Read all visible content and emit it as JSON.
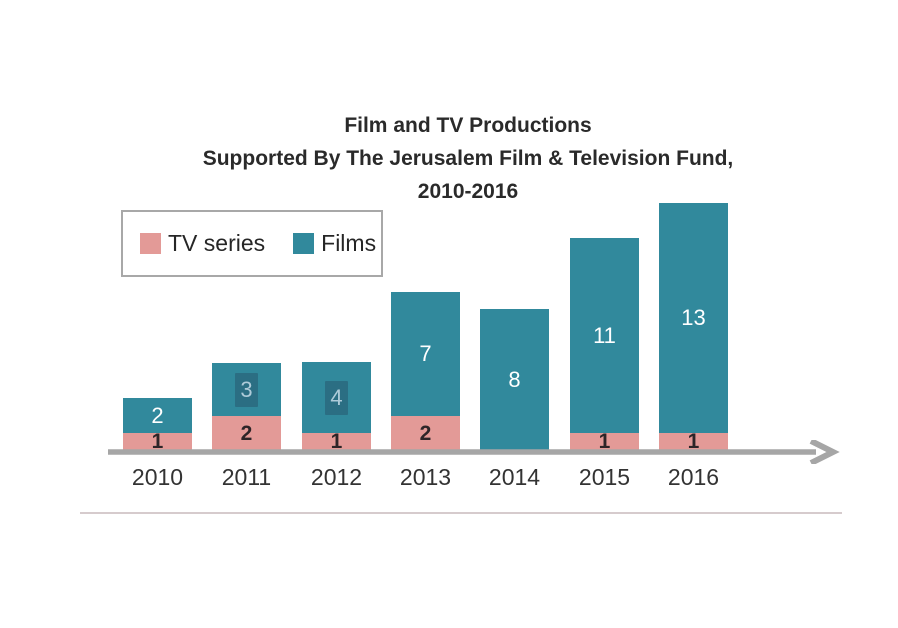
{
  "title": {
    "line1": "Film and TV Productions",
    "line2": "Supported By The Jerusalem Film & Television Fund,",
    "line3": "2010-2016"
  },
  "legend": {
    "items": [
      {
        "label": "TV series",
        "color": "#e39a97"
      },
      {
        "label": "Films",
        "color": "#31899c"
      }
    ]
  },
  "chart_data": {
    "type": "bar",
    "stacked": true,
    "title": "Film and TV Productions Supported By The Jerusalem Film & Television Fund, 2010-2016",
    "categories": [
      "2010",
      "2011",
      "2012",
      "2013",
      "2014",
      "2015",
      "2016"
    ],
    "series": [
      {
        "name": "TV series",
        "color": "#e39a97",
        "values": [
          1,
          2,
          1,
          2,
          0,
          1,
          1
        ]
      },
      {
        "name": "Films",
        "color": "#31899c",
        "values": [
          2,
          3,
          4,
          7,
          8,
          11,
          13
        ]
      }
    ],
    "totals": [
      3,
      5,
      5,
      9,
      8,
      12,
      14
    ],
    "value_labels_shown": true,
    "boxed_film_label_years": [
      "2011",
      "2012"
    ],
    "legend_position": "top-left",
    "grid": false,
    "y_axis_visible": false,
    "x_axis_style": "gray-line-with-right-arrow",
    "ylim": [
      0,
      14
    ]
  },
  "colors": {
    "tv_series": "#e39a97",
    "films": "#31899c",
    "films_label_text": "#ffffff",
    "films_label_box_bg": "#2b6e83",
    "films_label_box_text": "#aecbd9",
    "tv_label_text": "#2d2528",
    "axis": "#a6a6a6",
    "title_text": "#2a2a2a",
    "legend_border": "#a8a8a8",
    "bottom_divider": "#d6cbcd"
  }
}
